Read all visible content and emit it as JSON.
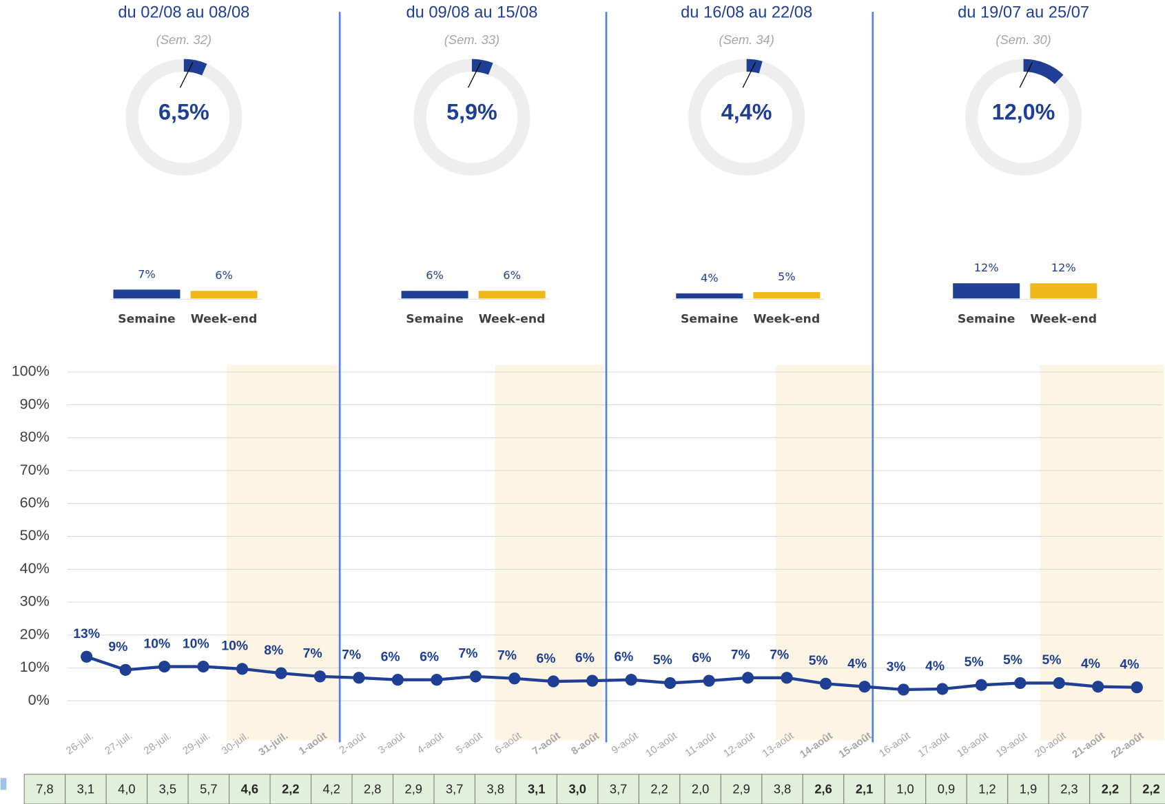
{
  "panels": [
    {
      "title": "du 02/08 au 08/08",
      "subtitle": "(Sem. 32)",
      "gauge": {
        "value": 6.5,
        "label": "6,5%"
      },
      "bars": {
        "categories": [
          "Semaine",
          "Week-end"
        ],
        "values": [
          7,
          6
        ],
        "value_labels": [
          "7%",
          "6%"
        ]
      }
    },
    {
      "title": "du 09/08 au 15/08",
      "subtitle": "(Sem. 33)",
      "gauge": {
        "value": 5.9,
        "label": "5,9%"
      },
      "bars": {
        "categories": [
          "Semaine",
          "Week-end"
        ],
        "values": [
          6,
          6
        ],
        "value_labels": [
          "6%",
          "6%"
        ]
      }
    },
    {
      "title": "du 16/08 au 22/08",
      "subtitle": "(Sem. 34)",
      "gauge": {
        "value": 4.4,
        "label": "4,4%"
      },
      "bars": {
        "categories": [
          "Semaine",
          "Week-end"
        ],
        "values": [
          4,
          5
        ],
        "value_labels": [
          "4%",
          "5%"
        ]
      }
    },
    {
      "title": "du 19/07 au 25/07",
      "subtitle": "(Sem. 30)",
      "gauge": {
        "value": 12.0,
        "label": "12,0%"
      },
      "bars": {
        "categories": [
          "Semaine",
          "Week-end"
        ],
        "values": [
          12,
          12
        ],
        "value_labels": [
          "12%",
          "12%"
        ]
      }
    }
  ],
  "bar_colors": [
    "#1f3f94",
    "#f0b81a"
  ],
  "chart_data": {
    "type": "line",
    "color": "#1f3f94",
    "categories": [
      "26-juil.",
      "27-juil.",
      "28-juil.",
      "29-juil.",
      "30-juil.",
      "31-juil.",
      "1-août",
      "2-août",
      "3-août",
      "4-août",
      "5-août",
      "6-août",
      "7-août",
      "8-août",
      "9-août",
      "10-août",
      "11-août",
      "12-août",
      "13-août",
      "14-août",
      "15-août",
      "16-août",
      "17-août",
      "18-août",
      "19-août",
      "20-août",
      "21-août",
      "22-août"
    ],
    "values": [
      13.4,
      9.4,
      10.4,
      10.4,
      9.7,
      8.4,
      7.4,
      7,
      6.4,
      6.4,
      7.4,
      6.8,
      5.9,
      6.1,
      6.4,
      5.4,
      6.1,
      7,
      7,
      5.2,
      4.3,
      3.4,
      3.6,
      4.8,
      5.4,
      5.4,
      4.3,
      4.1
    ],
    "value_labels": [
      "13%",
      "9%",
      "10%",
      "10%",
      "10%",
      "8%",
      "7%",
      "7%",
      "6%",
      "6%",
      "7%",
      "7%",
      "6%",
      "6%",
      "6%",
      "5%",
      "6%",
      "7%",
      "7%",
      "5%",
      "4%",
      "3%",
      "4%",
      "5%",
      "5%",
      "5%",
      "4%",
      "4%"
    ],
    "ylim": [
      0,
      100
    ],
    "yticks": [
      {
        "value": 0,
        "label": "0%"
      },
      {
        "value": 10,
        "label": "10%"
      },
      {
        "value": 20,
        "label": "20%"
      },
      {
        "value": 30,
        "label": "30%"
      },
      {
        "value": 40,
        "label": "40%"
      },
      {
        "value": 50,
        "label": "50%"
      },
      {
        "value": 60,
        "label": "60%"
      },
      {
        "value": 70,
        "label": "70%"
      },
      {
        "value": 80,
        "label": "80%"
      },
      {
        "value": 90,
        "label": "90%"
      },
      {
        "value": 100,
        "label": "100%"
      }
    ],
    "grid": true
  },
  "daily_table": {
    "values": [
      7.8,
      3.1,
      4.0,
      3.5,
      5.7,
      4.6,
      2.2,
      4.2,
      2.8,
      2.9,
      3.7,
      3.8,
      3.1,
      3.0,
      3.7,
      2.2,
      2.0,
      2.9,
      3.8,
      2.6,
      2.1,
      1.0,
      0.9,
      1.2,
      1.9,
      2.3,
      2.2,
      2.2
    ],
    "value_labels": [
      "7,8",
      "3,1",
      "4,0",
      "3,5",
      "5,7",
      "4,6",
      "2,2",
      "4,2",
      "2,8",
      "2,9",
      "3,7",
      "3,8",
      "3,1",
      "3,0",
      "3,7",
      "2,2",
      "2,0",
      "2,9",
      "3,8",
      "2,6",
      "2,1",
      "1,0",
      "0,9",
      "1,2",
      "1,9",
      "2,3",
      "2,2",
      "2,2"
    ]
  }
}
